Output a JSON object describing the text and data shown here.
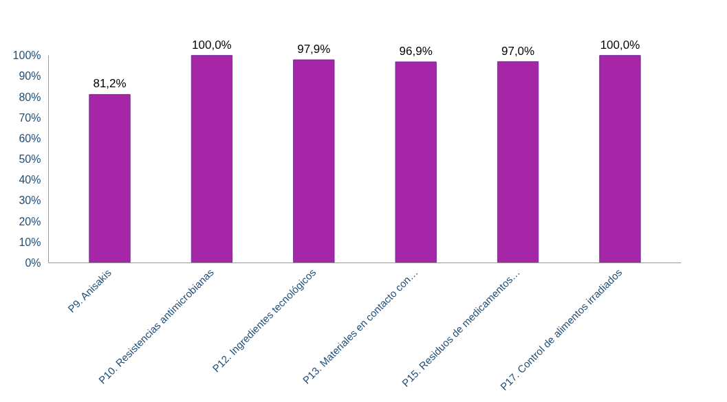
{
  "chart_data": {
    "type": "bar",
    "categories": [
      "P9. Anisakis",
      "P10. Resistencias antimicrobianas",
      "P12. Ingredientes tecnológicos",
      "P13. Materiales en contacto con…",
      "P15. Residuos de medicamentos…",
      "P17. Control de alimentos irradiados"
    ],
    "values": [
      81.2,
      100.0,
      97.9,
      96.9,
      97.0,
      100.0
    ],
    "value_labels": [
      "81,2%",
      "100,0%",
      "97,9%",
      "96,9%",
      "97,0%",
      "100,0%"
    ],
    "color": "#a626a8",
    "ylim": [
      0,
      100
    ],
    "yticks": [
      {
        "value": 0,
        "label": "0%"
      },
      {
        "value": 10,
        "label": "10%"
      },
      {
        "value": 20,
        "label": "20%"
      },
      {
        "value": 30,
        "label": "30%"
      },
      {
        "value": 40,
        "label": "40%"
      },
      {
        "value": 50,
        "label": "50%"
      },
      {
        "value": 60,
        "label": "60%"
      },
      {
        "value": 70,
        "label": "70%"
      },
      {
        "value": 80,
        "label": "80%"
      },
      {
        "value": 90,
        "label": "90%"
      },
      {
        "value": 100,
        "label": "100%"
      }
    ],
    "grid": false
  }
}
